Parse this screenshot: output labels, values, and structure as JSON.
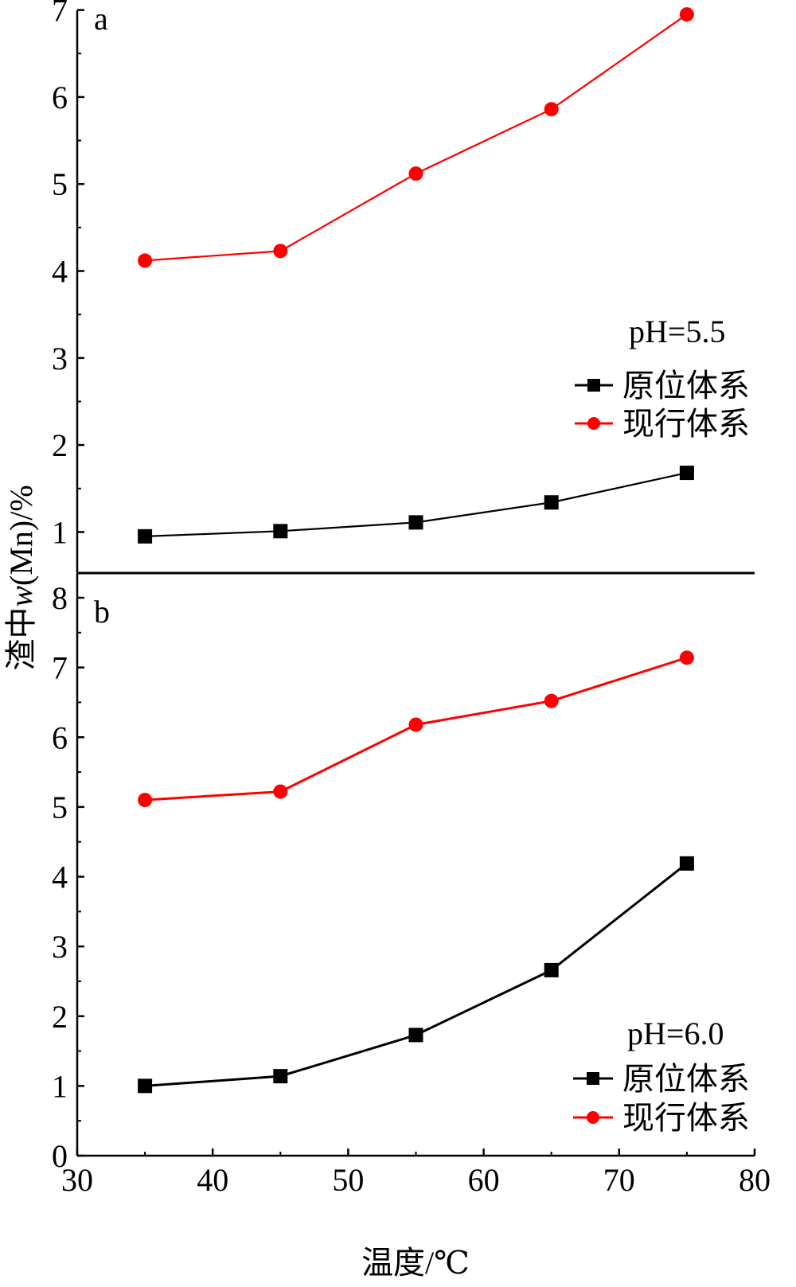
{
  "chart_data": [
    {
      "type": "line",
      "panel_label": "a",
      "x": [
        35,
        45,
        55,
        65,
        75
      ],
      "series": [
        {
          "name": "原位体系",
          "marker": "square",
          "color": "#000000",
          "values": [
            0.95,
            1.01,
            1.11,
            1.34,
            1.68
          ]
        },
        {
          "name": "现行体系",
          "marker": "circle",
          "color": "#ff0000",
          "values": [
            4.12,
            4.23,
            5.12,
            5.86,
            6.95
          ]
        }
      ],
      "legend_title": "pH=5.5",
      "legend_position": "right",
      "xlim": [
        30,
        80
      ],
      "ylim": [
        0.5,
        7
      ],
      "yticks": [
        "1",
        "2",
        "3",
        "4",
        "5",
        "6",
        "7"
      ],
      "ytick_values": [
        1,
        2,
        3,
        4,
        5,
        6,
        7
      ]
    },
    {
      "type": "line",
      "panel_label": "b",
      "x": [
        35,
        45,
        55,
        65,
        75
      ],
      "series": [
        {
          "name": "原位体系",
          "marker": "square",
          "color": "#000000",
          "values": [
            1.0,
            1.14,
            1.73,
            2.66,
            4.19
          ]
        },
        {
          "name": "现行体系",
          "marker": "circle",
          "color": "#ff0000",
          "values": [
            5.1,
            5.22,
            6.18,
            6.52,
            7.14
          ]
        }
      ],
      "legend_title": "pH=6.0",
      "legend_position": "bottom-right",
      "xlim": [
        30,
        80
      ],
      "ylim": [
        0,
        8
      ],
      "yticks": [
        "0",
        "1",
        "2",
        "3",
        "4",
        "5",
        "6",
        "7",
        "8"
      ],
      "ytick_values": [
        0,
        1,
        2,
        3,
        4,
        5,
        6,
        7,
        8
      ],
      "xticks": [
        "30",
        "40",
        "50",
        "60",
        "70",
        "80"
      ],
      "xtick_values": [
        30,
        40,
        50,
        60,
        70,
        80
      ]
    }
  ],
  "ylabel": "渣中w(Mn)/%",
  "xlabel": "温度/℃"
}
